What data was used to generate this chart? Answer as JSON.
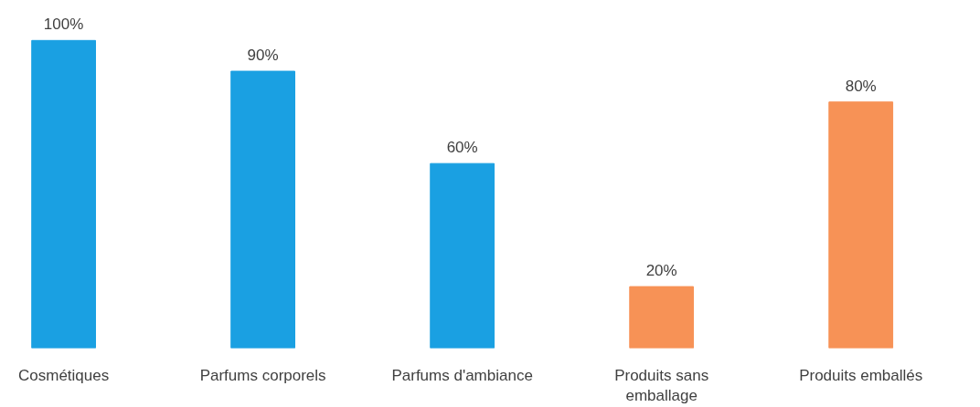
{
  "chart_data": {
    "type": "bar",
    "categories": [
      "Cosmétiques",
      "Parfums corporels",
      "Parfums d'ambiance",
      "Produits sans emballage",
      "Produits emballés"
    ],
    "values": [
      100,
      90,
      60,
      20,
      80
    ],
    "colors": [
      "#1aa0e2",
      "#1aa0e2",
      "#1aa0e2",
      "#f79256",
      "#f79256"
    ],
    "value_labels": [
      "100%",
      "90%",
      "60%",
      "20%",
      "80%"
    ],
    "grid": false
  }
}
